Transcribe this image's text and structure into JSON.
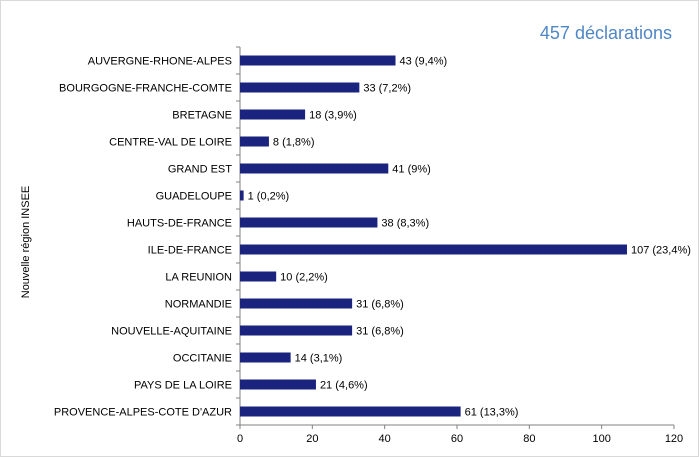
{
  "header": {
    "declarations": "457 déclarations"
  },
  "chart_data": {
    "type": "bar",
    "orientation": "horizontal",
    "ylabel": "Nouvelle  région INSEE",
    "xlim": [
      0,
      120
    ],
    "x_ticks": [
      0,
      20,
      40,
      60,
      80,
      100,
      120
    ],
    "categories": [
      "AUVERGNE-RHONE-ALPES",
      "BOURGOGNE-FRANCHE-COMTE",
      "BRETAGNE",
      "CENTRE-VAL DE LOIRE",
      "GRAND EST",
      "GUADELOUPE",
      "HAUTS-DE-FRANCE",
      "ILE-DE-FRANCE",
      "LA REUNION",
      "NORMANDIE",
      "NOUVELLE-AQUITAINE",
      "OCCITANIE",
      "PAYS DE LA LOIRE",
      "PROVENCE-ALPES-COTE D'AZUR"
    ],
    "values": [
      43,
      33,
      18,
      8,
      41,
      1,
      38,
      107,
      10,
      31,
      31,
      14,
      21,
      61
    ],
    "data_labels": [
      "43 (9,4%)",
      "33 (7,2%)",
      "18 (3,9%)",
      "8 (1,8%)",
      "41 (9%)",
      "1 (0,2%)",
      "38 (8,3%)",
      "107 (23,4%)",
      "10 (2,2%)",
      "31 (6,8%)",
      "31 (6,8%)",
      "14 (3,1%)",
      "21 (4,6%)",
      "61 (13,3%)"
    ],
    "bar_color": "#1a237e",
    "grid": false,
    "legend": "none"
  }
}
